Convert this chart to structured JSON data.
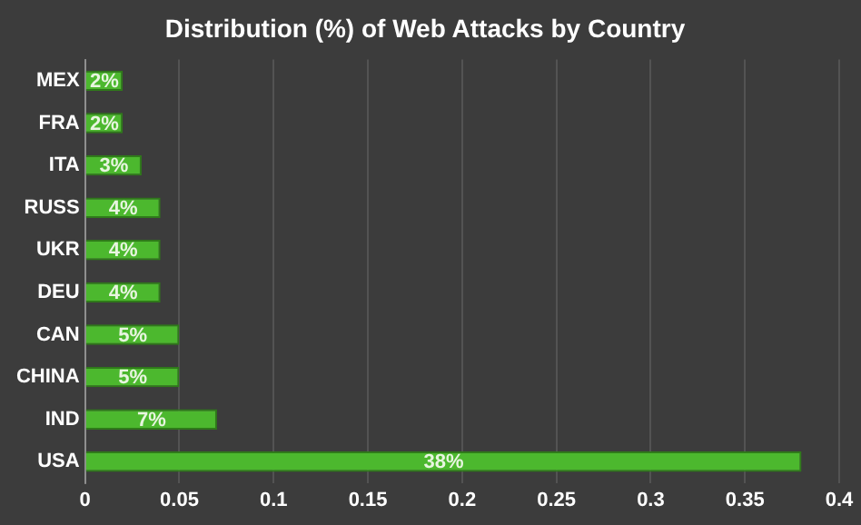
{
  "chart_data": {
    "type": "bar",
    "title": "Distribution (%) of Web Attacks by Country",
    "orientation": "horizontal",
    "categories": [
      "MEX",
      "FRA",
      "ITA",
      "RUSS",
      "UKR",
      "DEU",
      "CAN",
      "CHINA",
      "IND",
      "USA"
    ],
    "values": [
      0.02,
      0.02,
      0.03,
      0.04,
      0.04,
      0.04,
      0.05,
      0.05,
      0.07,
      0.38
    ],
    "value_labels": [
      "2%",
      "2%",
      "3%",
      "4%",
      "4%",
      "4%",
      "5%",
      "5%",
      "7%",
      "38%"
    ],
    "color": "#4cb82e",
    "xlim": [
      0,
      0.4
    ],
    "xticks": [
      0,
      0.05,
      0.1,
      0.15,
      0.2,
      0.25,
      0.3,
      0.35,
      0.4
    ],
    "grid": "x"
  }
}
